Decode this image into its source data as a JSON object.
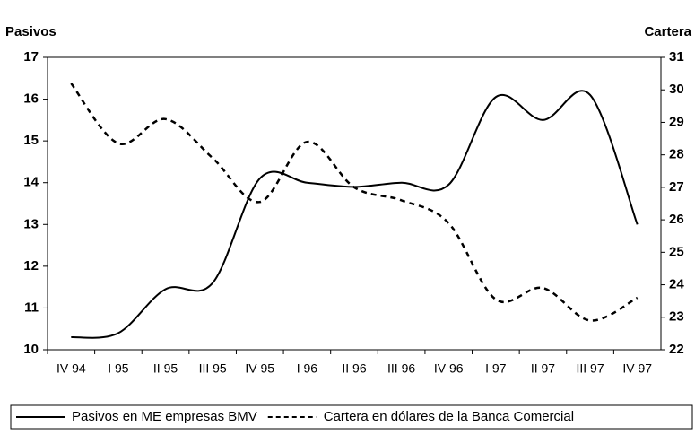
{
  "chart_data": {
    "type": "line",
    "y_label": "Pasivos",
    "y2_label": "Cartera",
    "categories": [
      "IV 94",
      "I 95",
      "II 95",
      "III 95",
      "IV 95",
      "I 96",
      "II 96",
      "III 96",
      "IV 96",
      "I 97",
      "II 97",
      "III 97",
      "IV 97"
    ],
    "ylim": [
      10,
      17
    ],
    "yticks": [
      10,
      11,
      12,
      13,
      14,
      15,
      16,
      17
    ],
    "y2lim": [
      22,
      31
    ],
    "y2ticks": [
      22,
      23,
      24,
      25,
      26,
      27,
      28,
      29,
      30,
      31
    ],
    "legend": "bottom",
    "series": [
      {
        "name": "Pasivos en ME empresas BMV",
        "color": "#000000",
        "style": "solid",
        "values": [
          10.3,
          10.4,
          11.45,
          11.6,
          14.1,
          14.0,
          13.9,
          14.0,
          13.95,
          16.05,
          15.5,
          16.1,
          13.0
        ]
      },
      {
        "name": "Cartera en dólares de la Banca Comercial",
        "color": "#000000",
        "style": "dashed",
        "axis": "y2",
        "values": [
          30.2,
          28.35,
          29.1,
          27.9,
          26.55,
          28.4,
          27.0,
          26.6,
          25.9,
          23.55,
          23.9,
          22.9,
          23.6
        ]
      }
    ]
  }
}
